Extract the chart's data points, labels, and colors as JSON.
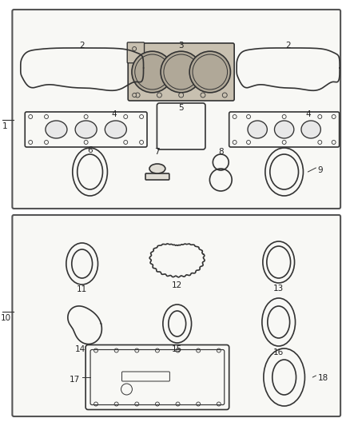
{
  "bg_color": "#ffffff",
  "box_color": "#f8f8f5",
  "box_border": "#444444",
  "line_color": "#333333",
  "line_width": 1.2,
  "label_fontsize": 7.5
}
